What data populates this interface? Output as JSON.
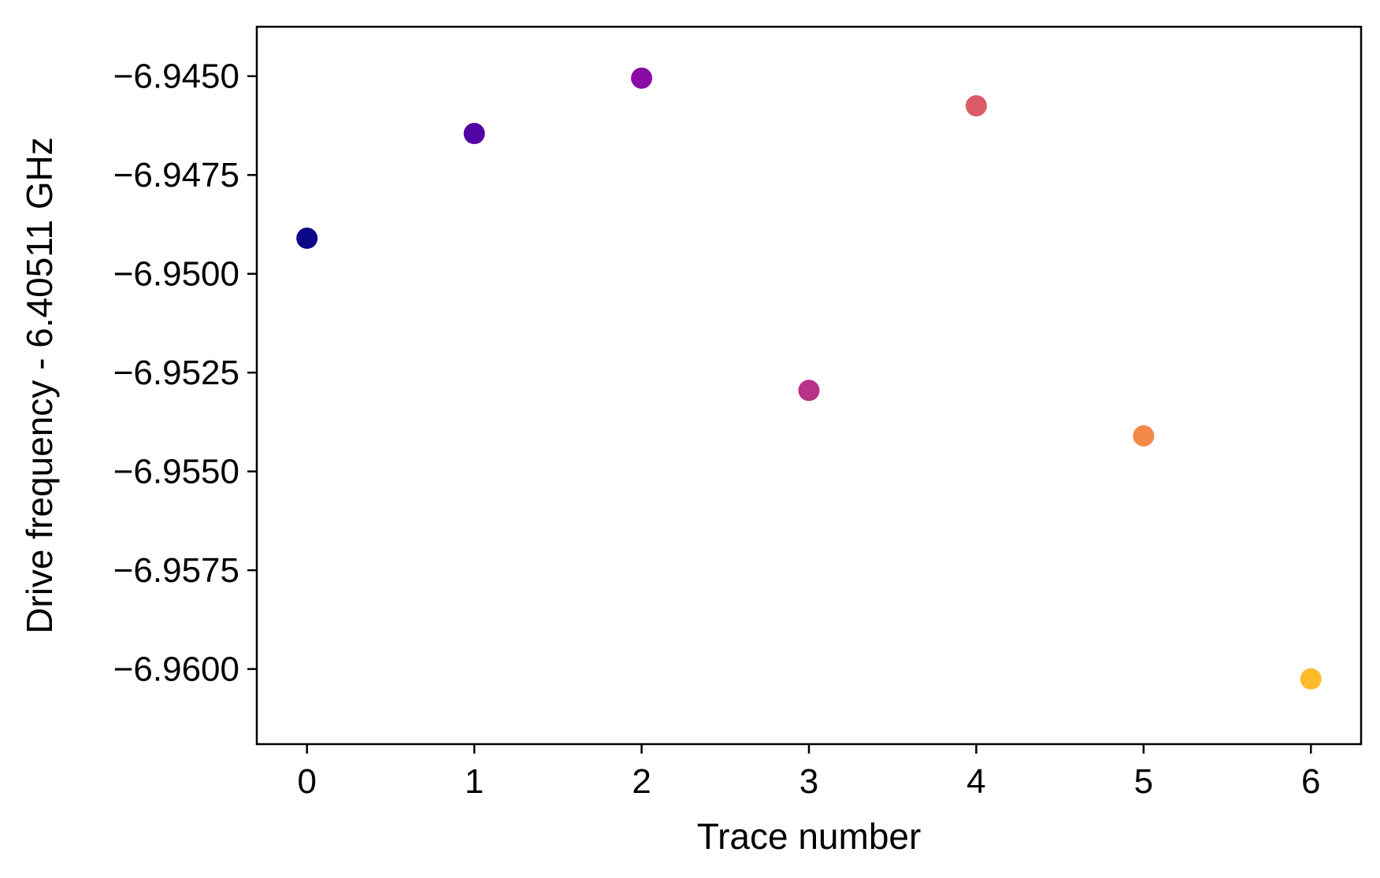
{
  "chart_data": {
    "type": "scatter",
    "title": "",
    "xlabel": "Trace number",
    "ylabel": "Drive frequency - 6.40511 GHz",
    "x": [
      0,
      1,
      2,
      3,
      4,
      5,
      6
    ],
    "y": [
      -6.9491,
      -6.94645,
      -6.94505,
      -6.95295,
      -6.94575,
      -6.9541,
      -6.96025
    ],
    "point_colors": [
      "#0d0887",
      "#5302a3",
      "#8b0aa5",
      "#b83289",
      "#db5c68",
      "#f48849",
      "#febc2a"
    ],
    "xlim": [
      -0.3,
      6.3
    ],
    "ylim": [
      -6.9619,
      -6.94375
    ],
    "xticks": [
      0,
      1,
      2,
      3,
      4,
      5,
      6
    ],
    "xtick_labels": [
      "0",
      "1",
      "2",
      "3",
      "4",
      "5",
      "6"
    ],
    "yticks": [
      -6.945,
      -6.9475,
      -6.95,
      -6.9525,
      -6.955,
      -6.9575,
      -6.96
    ],
    "ytick_labels": [
      "−6.9450",
      "−6.9475",
      "−6.9500",
      "−6.9525",
      "−6.9550",
      "−6.9575",
      "−6.9600"
    ],
    "grid": false,
    "legend": false
  }
}
